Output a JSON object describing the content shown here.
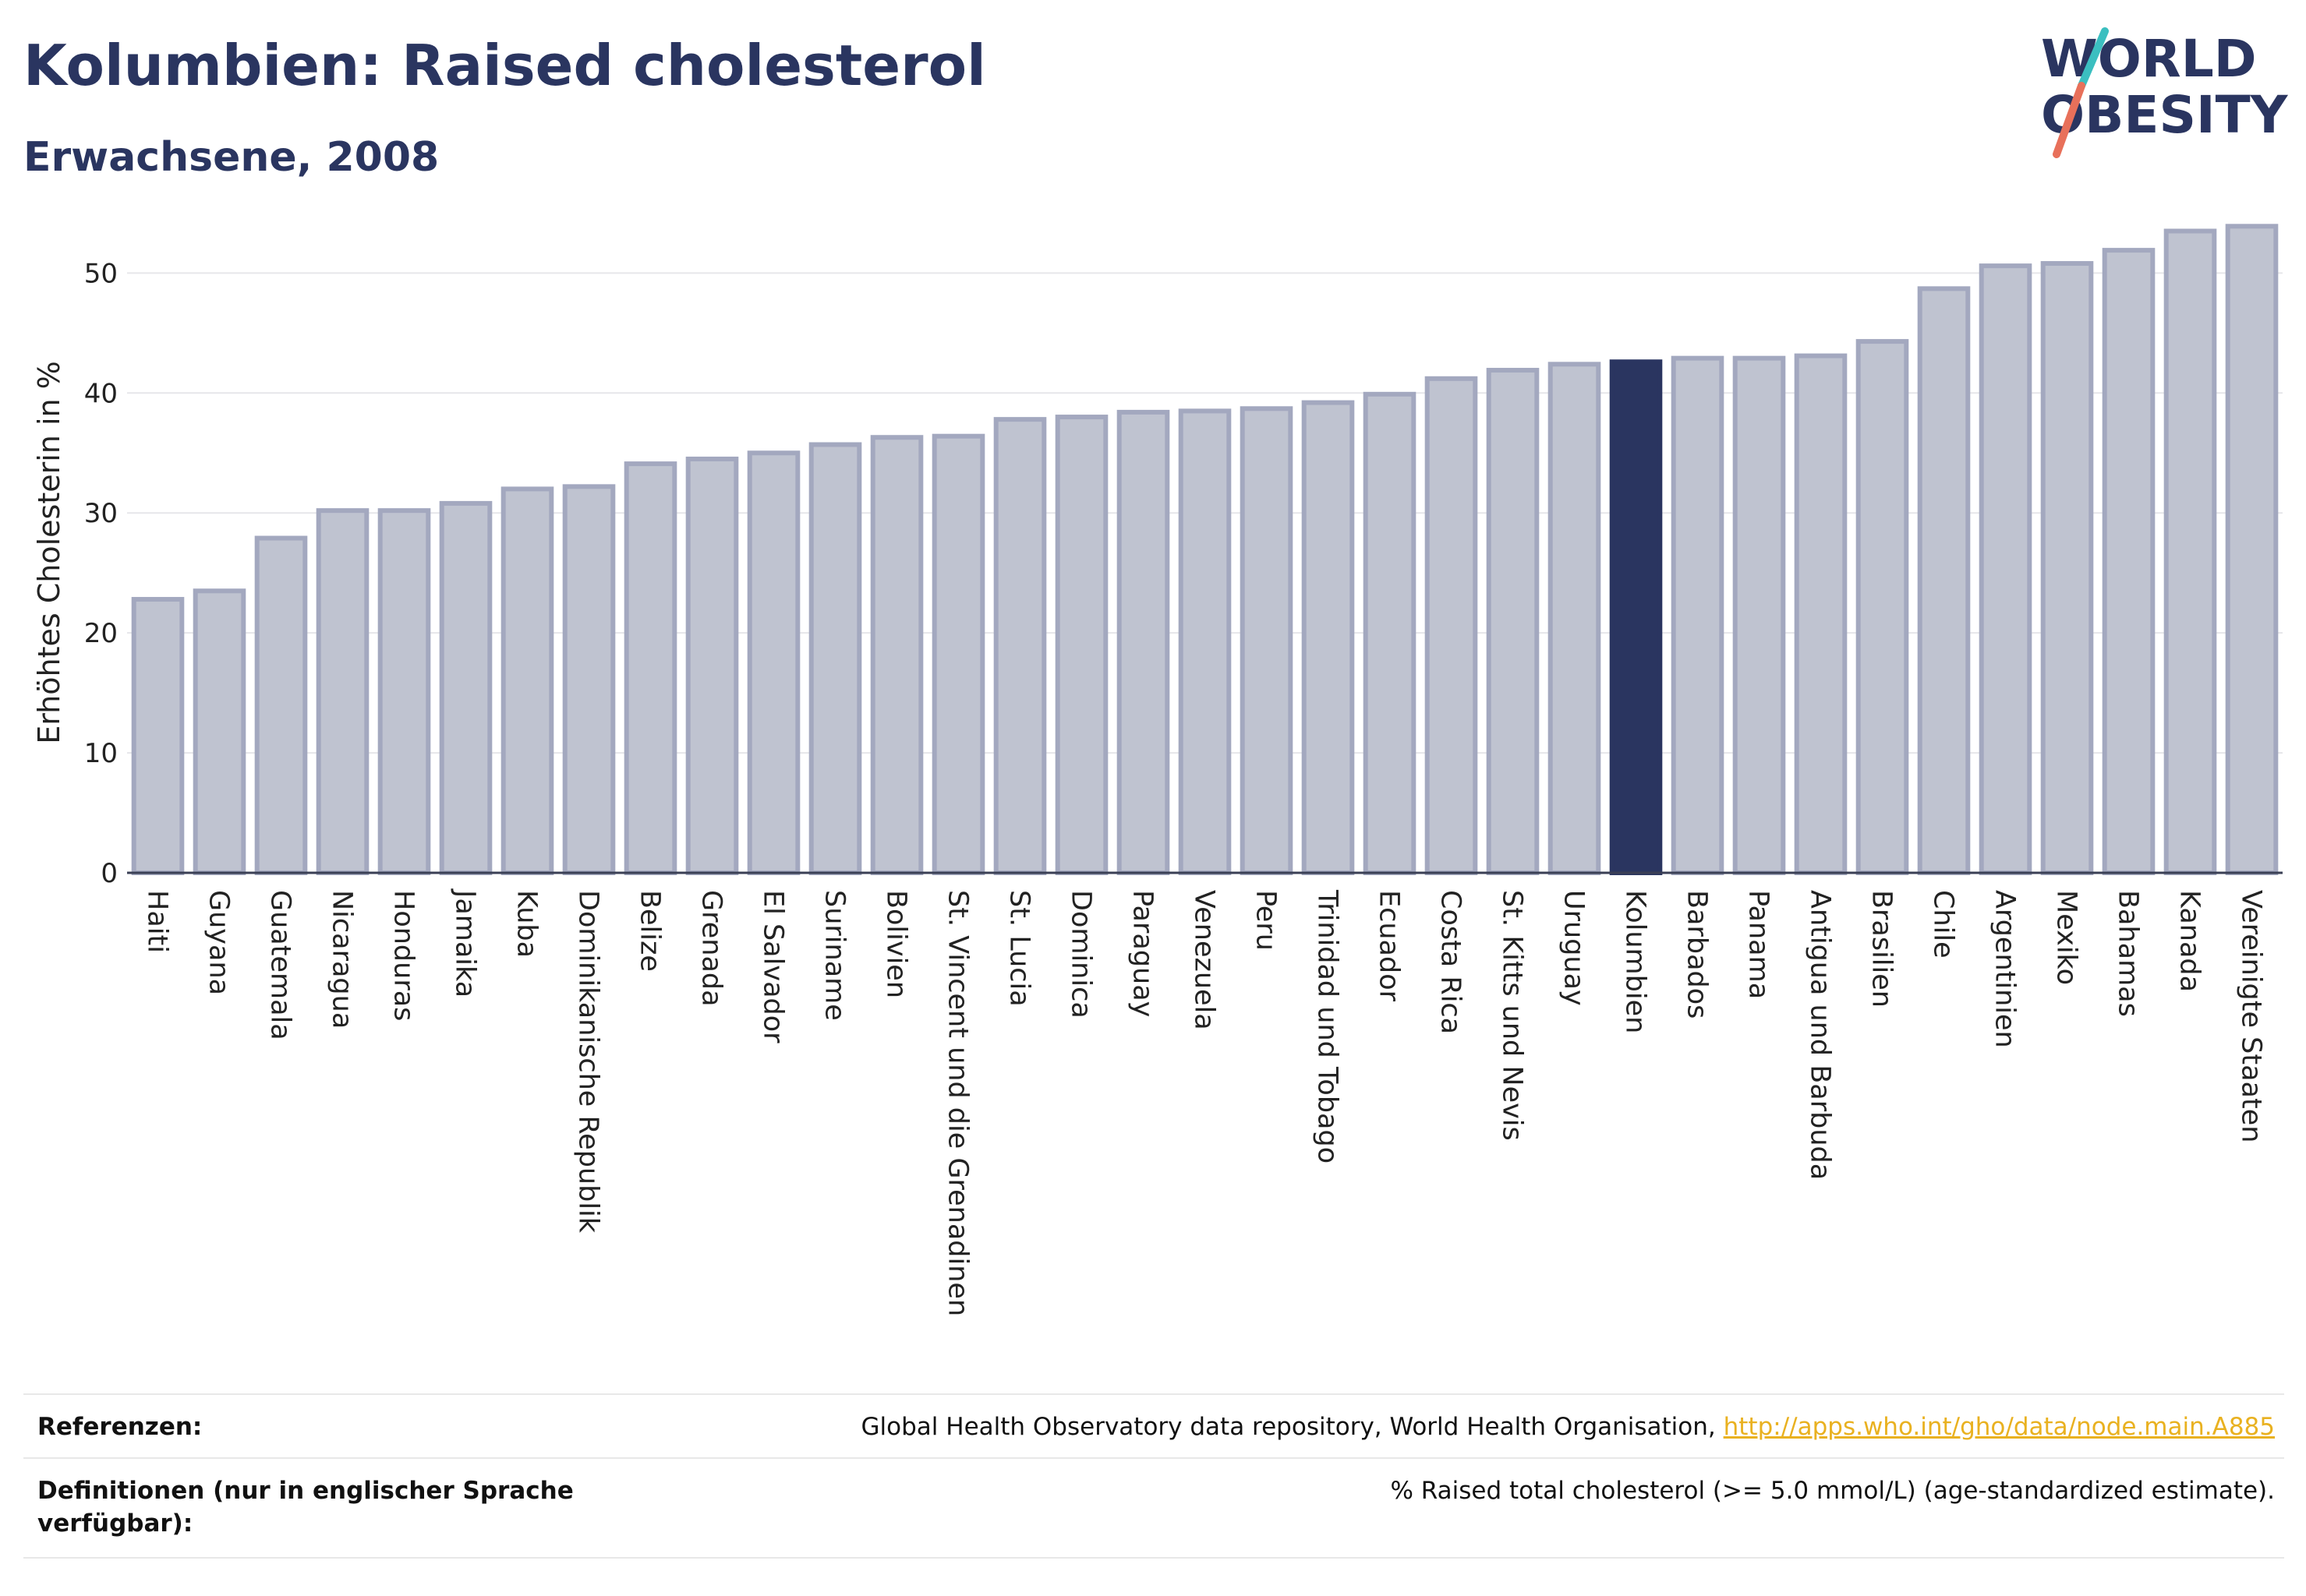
{
  "header": {
    "title": "Kolumbien: Raised cholesterol",
    "subtitle": "Erwachsene, 2008"
  },
  "logo": {
    "line1": "WORLD",
    "line2": "OBESITY",
    "colors": {
      "text": "#2a3560",
      "slash_top": "#3bbfc0",
      "slash_bottom": "#e8705a"
    }
  },
  "chart_data": {
    "type": "bar",
    "ylabel": "Erhöhtes Cholesterin in %",
    "xlabel": "",
    "ylim": [
      0,
      56
    ],
    "yticks": [
      0,
      10,
      20,
      30,
      40,
      50
    ],
    "grid": true,
    "highlight": "Kolumbien",
    "colors": {
      "bar": "#bfc3d0",
      "bar_edge": "#a3a8bf",
      "highlight": "#2a3560"
    },
    "categories": [
      "Haiti",
      "Guyana",
      "Guatemala",
      "Nicaragua",
      "Honduras",
      "Jamaika",
      "Kuba",
      "Dominikanische Republik",
      "Belize",
      "Grenada",
      "El Salvador",
      "Suriname",
      "Bolivien",
      "St. Vincent und die Grenadinen",
      "St. Lucia",
      "Dominica",
      "Paraguay",
      "Venezuela",
      "Peru",
      "Trinidad und Tobago",
      "Ecuador",
      "Costa Rica",
      "St. Kitts und Nevis",
      "Uruguay",
      "Kolumbien",
      "Barbados",
      "Panama",
      "Antigua und Barbuda",
      "Brasilien",
      "Chile",
      "Argentinien",
      "Mexiko",
      "Bahamas",
      "Kanada",
      "Vereinigte Staaten"
    ],
    "values": [
      22.8,
      23.5,
      27.9,
      30.2,
      30.2,
      30.8,
      32.0,
      32.2,
      34.1,
      34.5,
      35.0,
      35.7,
      36.3,
      36.4,
      37.8,
      38.0,
      38.4,
      38.5,
      38.7,
      39.2,
      39.9,
      41.2,
      41.9,
      42.4,
      42.6,
      42.9,
      42.9,
      43.1,
      44.3,
      48.7,
      50.6,
      50.8,
      51.9,
      53.5,
      53.9
    ]
  },
  "footer": {
    "references_label": "Referenzen:",
    "references_text": "Global Health Observatory data repository, World Health Organisation, ",
    "references_link": "http://apps.who.int/gho/data/node.main.A885",
    "definitions_label": "Definitionen (nur in englischer Sprache verfügbar):",
    "definitions_text": "% Raised total cholesterol (>= 5.0 mmol/L) (age-standardized estimate)."
  }
}
